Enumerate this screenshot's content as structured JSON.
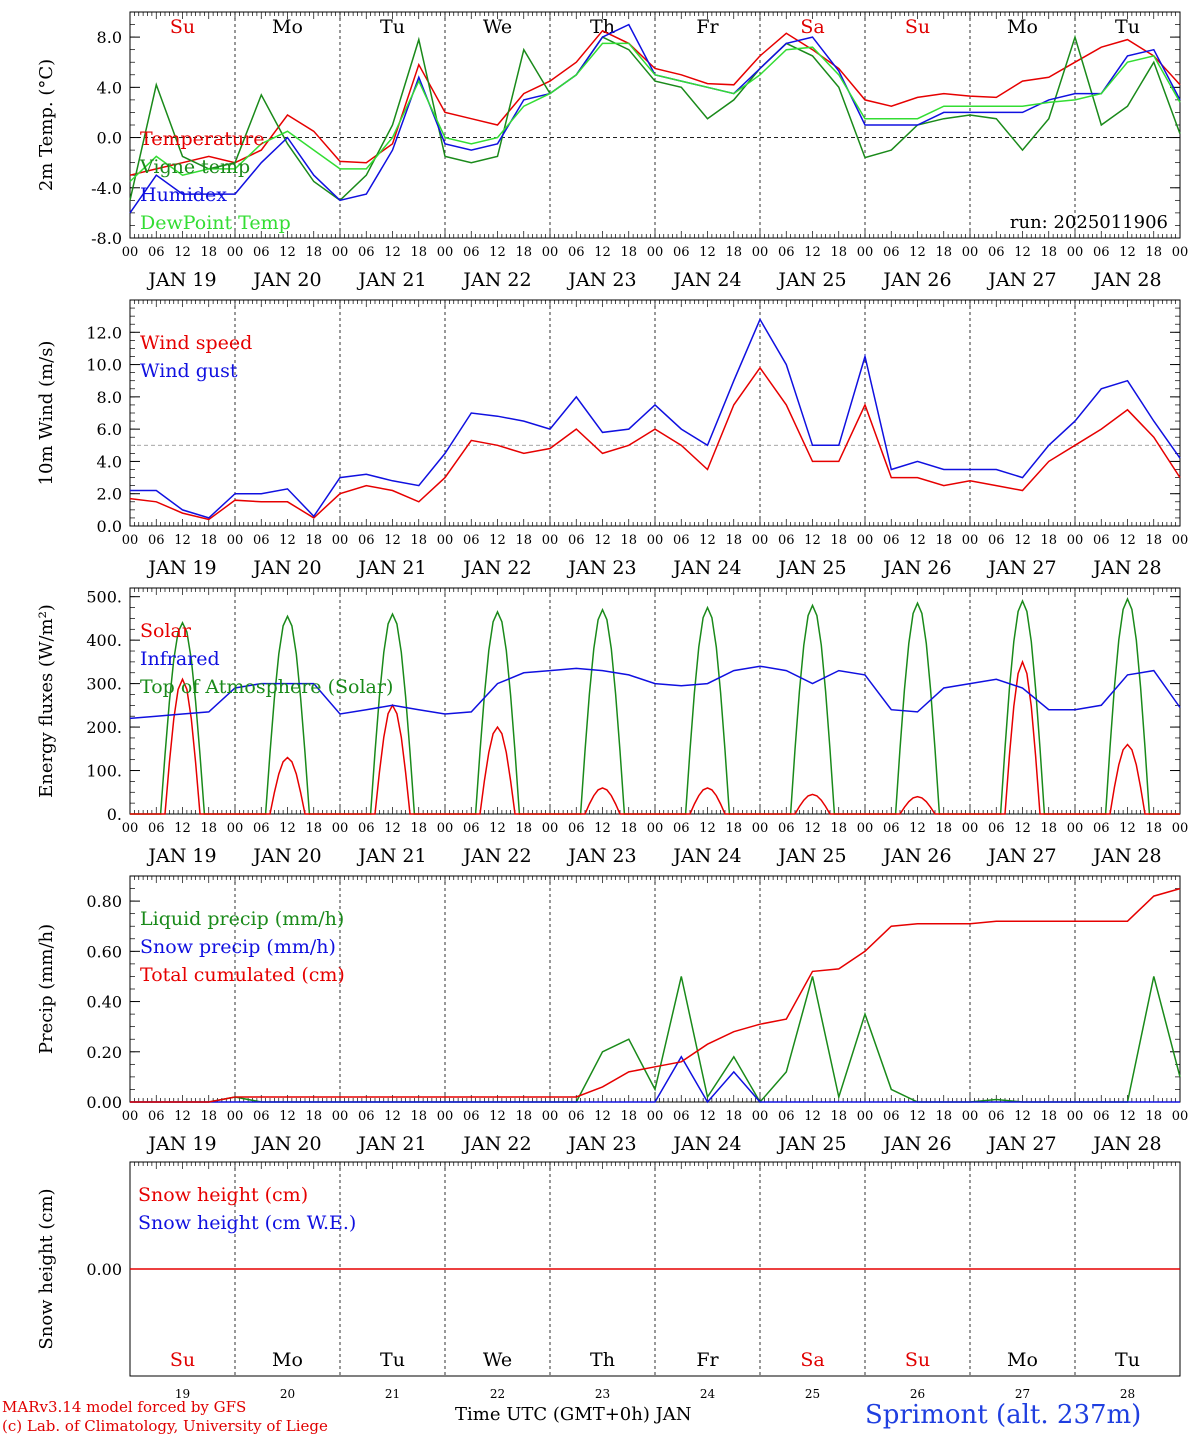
{
  "time_axis": {
    "hour_ticks": [
      "00",
      "06",
      "12",
      "18"
    ],
    "end_tick": "00",
    "dates": [
      "JAN 19",
      "JAN 20",
      "JAN 21",
      "JAN 22",
      "JAN 23",
      "JAN 24",
      "JAN 25",
      "JAN 26",
      "JAN 27",
      "JAN 28"
    ],
    "weekdays": [
      "Su",
      "Mo",
      "Tu",
      "We",
      "Th",
      "Fr",
      "Sa",
      "Su",
      "Mo",
      "Tu"
    ],
    "weekday_colors": [
      "#e00000",
      "#000000",
      "#000000",
      "#000000",
      "#000000",
      "#000000",
      "#e00000",
      "#e00000",
      "#000000",
      "#000000"
    ],
    "day_numbers": [
      "19",
      "20",
      "21",
      "22",
      "23",
      "24",
      "25",
      "26",
      "27",
      "28"
    ],
    "xlabel": "Time UTC (GMT+0h) JAN"
  },
  "run_label": "run: 2025011906",
  "footer": {
    "model_line": "MARv3.14 model forced by GFS",
    "lab_line": "(c) Lab. of Climatology, University of Liege",
    "station": "Sprimont (alt. 237m)"
  },
  "colors": {
    "red": "#e60000",
    "blue": "#1010e0",
    "dkgreen": "#1a8a1a",
    "ltgreen": "#33dd33"
  },
  "chart_data": [
    {
      "type": "line",
      "ylabel": "2m Temp. (°C)",
      "ylim": [
        -8,
        10
      ],
      "yticks": [
        "-8.0",
        "-4.0",
        "0.0",
        "4.0",
        "8.0"
      ],
      "ytick_values": [
        -8,
        -4,
        0,
        4,
        8
      ],
      "reference_line": 0,
      "x_hours": [
        0,
        6,
        12,
        18,
        24,
        30,
        36,
        42,
        48,
        54,
        60,
        66,
        72,
        78,
        84,
        90,
        96,
        102,
        108,
        114,
        120,
        126,
        132,
        138,
        144,
        150,
        156,
        162,
        168,
        174,
        180,
        186,
        192,
        198,
        204,
        210,
        216,
        222,
        228,
        234,
        240
      ],
      "series": [
        {
          "name": "Temperature",
          "color": "red",
          "values": [
            -3,
            -2.5,
            -2,
            -1.5,
            -2,
            -1,
            1.8,
            0.5,
            -1.9,
            -2,
            -0.5,
            5.8,
            2,
            1.5,
            1,
            3.5,
            4.5,
            6,
            8.5,
            7.5,
            5.5,
            5,
            4.3,
            4.2,
            6.5,
            8.3,
            7,
            5.5,
            3,
            2.5,
            3.2,
            3.5,
            3.3,
            3.2,
            4.5,
            4.8,
            6,
            7.2,
            7.8,
            6.5,
            4.2
          ]
        },
        {
          "name": "Vigne temp",
          "color": "dkgreen",
          "values": [
            -5,
            4.2,
            -1.5,
            -2.5,
            -2,
            3.4,
            -0.5,
            -3.5,
            -5,
            -3,
            1,
            7.8,
            -1.5,
            -2,
            -1.5,
            7,
            3.5,
            5,
            8,
            7,
            4.5,
            4,
            1.5,
            3,
            5.5,
            7.5,
            6.5,
            4,
            -1.6,
            -1,
            1,
            1.5,
            1.8,
            1.5,
            -1,
            1.5,
            8,
            1,
            2.5,
            6,
            0.3
          ]
        },
        {
          "name": "Humidex",
          "color": "blue",
          "values": [
            -6,
            -3,
            -4.5,
            -4.5,
            -4.5,
            -2,
            0,
            -3,
            -5,
            -4.5,
            -1,
            4.8,
            -0.5,
            -1,
            -0.5,
            3,
            3.5,
            5,
            8,
            9,
            5,
            4.5,
            4,
            3.5,
            5.5,
            7.5,
            8,
            5.3,
            1,
            1,
            1,
            2,
            2,
            2,
            2,
            3,
            3.5,
            3.5,
            6.5,
            7,
            3
          ]
        },
        {
          "name": "DewPoint Temp",
          "color": "ltgreen",
          "values": [
            -3.5,
            -1.5,
            -3,
            -2.5,
            -2.5,
            -0.5,
            0.5,
            -1,
            -2.5,
            -2.5,
            0,
            4.5,
            0,
            -0.5,
            0,
            2.5,
            3.5,
            5,
            7.5,
            7.5,
            5,
            4.5,
            4,
            3.5,
            5,
            7,
            7.2,
            5,
            1.5,
            1.5,
            1.5,
            2.5,
            2.5,
            2.5,
            2.5,
            2.8,
            3,
            3.5,
            6,
            6.5,
            2.8
          ]
        }
      ]
    },
    {
      "type": "line",
      "ylabel": "10m Wind (m/s)",
      "ylim": [
        0,
        14
      ],
      "yticks": [
        "0.0",
        "2.0",
        "4.0",
        "6.0",
        "8.0",
        "10.0",
        "12.0"
      ],
      "ytick_values": [
        0,
        2,
        4,
        6,
        8,
        10,
        12
      ],
      "reference_line": 5,
      "x_hours": [
        0,
        6,
        12,
        18,
        24,
        30,
        36,
        42,
        48,
        54,
        60,
        66,
        72,
        78,
        84,
        90,
        96,
        102,
        108,
        114,
        120,
        126,
        132,
        138,
        144,
        150,
        156,
        162,
        168,
        174,
        180,
        186,
        192,
        198,
        204,
        210,
        216,
        222,
        228,
        234,
        240
      ],
      "series": [
        {
          "name": "Wind speed",
          "color": "red",
          "values": [
            1.7,
            1.5,
            0.8,
            0.4,
            1.6,
            1.5,
            1.5,
            0.5,
            2,
            2.5,
            2.2,
            1.5,
            3,
            5.3,
            5,
            4.5,
            4.8,
            6,
            4.5,
            5,
            6,
            5,
            3.5,
            7.5,
            9.8,
            7.5,
            4,
            4,
            7.5,
            3,
            3,
            2.5,
            2.8,
            2.5,
            2.2,
            4,
            5,
            6,
            7.2,
            5.5,
            3
          ]
        },
        {
          "name": "Wind gust",
          "color": "blue",
          "values": [
            2.2,
            2.2,
            1,
            0.5,
            2,
            2,
            2.3,
            0.6,
            3,
            3.2,
            2.8,
            2.5,
            4.5,
            7,
            6.8,
            6.5,
            6,
            8,
            5.8,
            6,
            7.5,
            6,
            5,
            9,
            12.8,
            10,
            5,
            5,
            10.5,
            3.5,
            4,
            3.5,
            3.5,
            3.5,
            3,
            5,
            6.5,
            8.5,
            9,
            6.5,
            4.2
          ]
        }
      ]
    },
    {
      "type": "line",
      "ylabel": "Energy fluxes (W/m²)",
      "ylim": [
        0,
        520
      ],
      "yticks": [
        "0.",
        "100.",
        "200.",
        "300.",
        "400.",
        "500."
      ],
      "ytick_values": [
        0,
        100,
        200,
        300,
        400,
        500
      ],
      "series": [
        {
          "name": "Solar",
          "color": "red",
          "peaks": [
            310,
            130,
            250,
            200,
            60,
            60,
            45,
            40,
            350,
            160
          ]
        },
        {
          "name": "Infrared",
          "color": "blue",
          "x_hours": [
            0,
            6,
            12,
            18,
            24,
            30,
            36,
            42,
            48,
            54,
            60,
            66,
            72,
            78,
            84,
            90,
            96,
            102,
            108,
            114,
            120,
            126,
            132,
            138,
            144,
            150,
            156,
            162,
            168,
            174,
            180,
            186,
            192,
            198,
            204,
            210,
            216,
            222,
            228,
            234,
            240
          ],
          "values": [
            220,
            225,
            230,
            235,
            290,
            300,
            300,
            300,
            230,
            240,
            250,
            240,
            230,
            235,
            300,
            325,
            330,
            335,
            330,
            320,
            300,
            295,
            300,
            330,
            340,
            330,
            300,
            330,
            320,
            240,
            235,
            290,
            300,
            310,
            290,
            240,
            240,
            250,
            320,
            330,
            245
          ]
        },
        {
          "name": "Top of Atmosphere (Solar)",
          "color": "dkgreen",
          "peaks": [
            440,
            455,
            460,
            465,
            470,
            475,
            480,
            485,
            490,
            495
          ]
        }
      ]
    },
    {
      "type": "line",
      "ylabel": "Precip (mm/h)",
      "ylim": [
        0,
        0.9
      ],
      "yticks": [
        "0.00",
        "0.20",
        "0.40",
        "0.60",
        "0.80"
      ],
      "ytick_values": [
        0,
        0.2,
        0.4,
        0.6,
        0.8
      ],
      "x_hours": [
        0,
        6,
        12,
        18,
        24,
        30,
        36,
        42,
        48,
        54,
        60,
        66,
        72,
        78,
        84,
        90,
        96,
        102,
        108,
        114,
        120,
        126,
        132,
        138,
        144,
        150,
        156,
        162,
        168,
        174,
        180,
        186,
        192,
        198,
        204,
        210,
        216,
        222,
        228,
        234,
        240
      ],
      "series": [
        {
          "name": "Liquid precip (mm/h)",
          "color": "dkgreen",
          "values": [
            0,
            0,
            0,
            0,
            0.02,
            0,
            0,
            0,
            0,
            0,
            0,
            0,
            0,
            0,
            0,
            0,
            0,
            0,
            0.2,
            0.25,
            0.05,
            0.5,
            0.02,
            0.18,
            0,
            0.12,
            0.5,
            0.02,
            0.35,
            0.05,
            0,
            0,
            0,
            0.01,
            0,
            0,
            0,
            0,
            0,
            0.5,
            0.1
          ]
        },
        {
          "name": "Snow precip (mm/h)",
          "color": "blue",
          "values": [
            0,
            0,
            0,
            0,
            0,
            0,
            0,
            0,
            0,
            0,
            0,
            0,
            0,
            0,
            0,
            0,
            0,
            0,
            0,
            0,
            0,
            0.18,
            0,
            0.12,
            0,
            0,
            0,
            0,
            0,
            0,
            0,
            0,
            0,
            0,
            0,
            0,
            0,
            0,
            0,
            0,
            0
          ]
        },
        {
          "name": "Total cumulated (cm)",
          "color": "red",
          "values": [
            0,
            0,
            0,
            0,
            0.02,
            0.02,
            0.02,
            0.02,
            0.02,
            0.02,
            0.02,
            0.02,
            0.02,
            0.02,
            0.02,
            0.02,
            0.02,
            0.02,
            0.06,
            0.12,
            0.14,
            0.16,
            0.23,
            0.28,
            0.31,
            0.33,
            0.52,
            0.53,
            0.6,
            0.7,
            0.71,
            0.71,
            0.71,
            0.72,
            0.72,
            0.72,
            0.72,
            0.72,
            0.72,
            0.82,
            0.85
          ]
        }
      ]
    },
    {
      "type": "line",
      "ylabel": "Snow height (cm)",
      "ylim": [
        -1,
        1
      ],
      "yticks": [
        "0.00"
      ],
      "ytick_values": [
        0
      ],
      "series": [
        {
          "name": "Snow height (cm)",
          "color": "red",
          "values": [
            0,
            0
          ]
        },
        {
          "name": "Snow height (cm W.E.)",
          "color": "blue",
          "values": []
        }
      ]
    }
  ]
}
